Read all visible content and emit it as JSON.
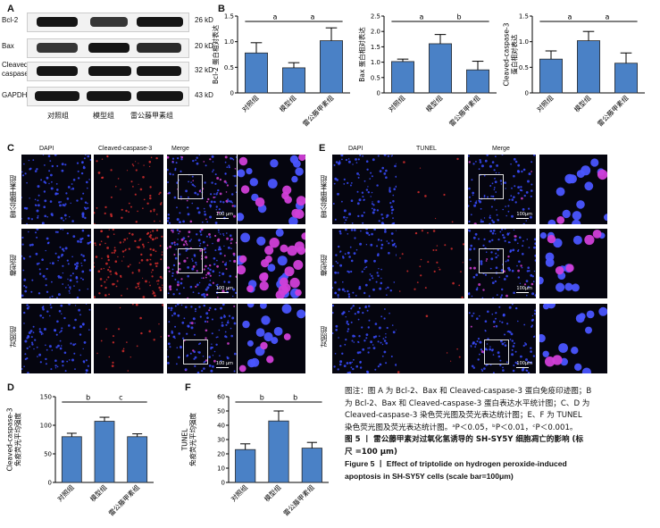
{
  "panel_A": {
    "label": "A",
    "blots": [
      {
        "name": "Bcl-2",
        "kda": "26 kD"
      },
      {
        "name": "Bax",
        "kda": "20 kD"
      },
      {
        "name": "Cleaved-\ncaspase-3",
        "kda": "32 kD"
      },
      {
        "name": "GAPDH",
        "kda": "43 kD"
      }
    ],
    "groups": [
      "对照组",
      "模型组",
      "雷公藤甲素组"
    ]
  },
  "panel_B": {
    "label": "B"
  },
  "panel_C": {
    "label": "C",
    "columns": [
      "DAPI",
      "Cleaved-caspase-3",
      "Merge"
    ],
    "rows": [
      "雷公藤甲素组",
      "模型组",
      "对照组"
    ],
    "scale": "100 μm"
  },
  "panel_D": {
    "label": "D"
  },
  "panel_E": {
    "label": "E",
    "columns": [
      "DAPI",
      "TUNEL",
      "Merge"
    ],
    "rows": [
      "雷公藤甲素组",
      "模型组",
      "对照组"
    ],
    "scale": "100μm"
  },
  "panel_F": {
    "label": "F"
  },
  "caption": {
    "note_lines": [
      "图注：图 A 为 Bcl-2、Bax 和 Cleaved-caspase-3 蛋白免疫印迹图；B",
      "为 Bcl-2、Bax 和 Cleaved-caspase-3 蛋白表达水平统计图；C、D 为",
      "Cleaved-caspase-3 染色荧光图及荧光表达统计图；E、F 为 TUNEL",
      "染色荧光图及荧光表达统计图。ᵃP＜0.05，ᵇP＜0.01，ᶜP＜0.001。"
    ],
    "title_cn_lines": [
      "图 5 丨 雷公藤甲素对过氧化氢诱导的 SH-SY5Y 细胞凋亡的影响 (标",
      "尺 =100 μm)"
    ],
    "title_en_lines": [
      "Figure 5  丨  Effect of triptolide on hydrogen peroxide-induced",
      "apoptosis in SH-SY5Y cells (scale bar=100μm)"
    ]
  },
  "chart_data": [
    {
      "type": "bar",
      "panel": "B",
      "ylabel": "Bcl-2 蛋白相对表达",
      "categories": [
        "对照组",
        "模型组",
        "雷公藤甲素组"
      ],
      "values": [
        0.78,
        0.49,
        1.02
      ],
      "errors": [
        0.2,
        0.1,
        0.25
      ],
      "ylim": [
        0,
        1.5
      ],
      "yticks": [
        "0",
        "0.5",
        "1.0",
        "1.5"
      ],
      "sig": [
        {
          "from": 0,
          "to": 1,
          "label": "a"
        },
        {
          "from": 1,
          "to": 2,
          "label": "a"
        }
      ],
      "color": "#4a81c6"
    },
    {
      "type": "bar",
      "panel": "B",
      "ylabel": "Bax 蛋白相对表达",
      "categories": [
        "对照组",
        "模型组",
        "雷公藤甲素组"
      ],
      "values": [
        1.02,
        1.6,
        0.75
      ],
      "errors": [
        0.08,
        0.3,
        0.28
      ],
      "ylim": [
        0,
        2.5
      ],
      "yticks": [
        "0",
        "0.5",
        "1.0",
        "1.5",
        "2.0",
        "2.5"
      ],
      "sig": [
        {
          "from": 0,
          "to": 1,
          "label": "a"
        },
        {
          "from": 1,
          "to": 2,
          "label": "b"
        }
      ],
      "color": "#4a81c6"
    },
    {
      "type": "bar",
      "panel": "B",
      "ylabel": "Cleaved-caspase-3\n蛋白相对表达",
      "categories": [
        "对照组",
        "模型组",
        "雷公藤甲素组"
      ],
      "values": [
        0.66,
        1.02,
        0.58
      ],
      "errors": [
        0.16,
        0.18,
        0.2
      ],
      "ylim": [
        0,
        1.5
      ],
      "yticks": [
        "0",
        "0.5",
        "1.0",
        "1.5"
      ],
      "sig": [
        {
          "from": 0,
          "to": 1,
          "label": "a"
        },
        {
          "from": 1,
          "to": 2,
          "label": "a"
        }
      ],
      "color": "#4a81c6"
    },
    {
      "type": "bar",
      "panel": "D",
      "ylabel": "Cleaved-caspase-3\n免疫荧光平均强度",
      "categories": [
        "对照组",
        "模型组",
        "雷公藤甲素组"
      ],
      "values": [
        80,
        107,
        80
      ],
      "errors": [
        6,
        7,
        5
      ],
      "ylim": [
        0,
        150
      ],
      "yticks": [
        "0",
        "50",
        "100",
        "150"
      ],
      "sig": [
        {
          "from": 0,
          "to": 1,
          "label": "b"
        },
        {
          "from": 1,
          "to": 2,
          "label": "c"
        }
      ],
      "color": "#4a81c6"
    },
    {
      "type": "bar",
      "panel": "F",
      "ylabel": "TUNEL\n免疫荧光平均强度",
      "categories": [
        "对照组",
        "模型组",
        "雷公藤甲素组"
      ],
      "values": [
        23,
        43,
        24
      ],
      "errors": [
        4,
        7,
        4
      ],
      "ylim": [
        0,
        60
      ],
      "yticks": [
        "0",
        "10",
        "20",
        "30",
        "40",
        "50",
        "60"
      ],
      "sig": [
        {
          "from": 0,
          "to": 1,
          "label": "b"
        },
        {
          "from": 1,
          "to": 2,
          "label": "b"
        }
      ],
      "color": "#4a81c6"
    }
  ]
}
